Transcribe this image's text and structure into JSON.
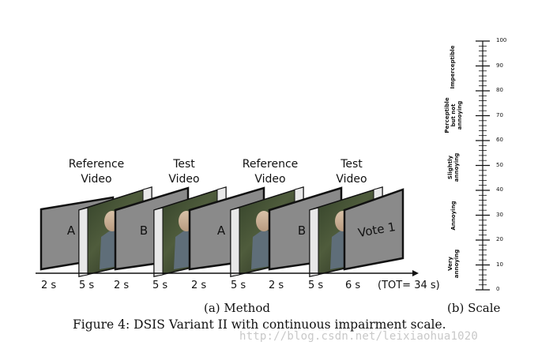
{
  "method": {
    "headers": [
      {
        "line1": "Reference",
        "line2": "Video"
      },
      {
        "line1": "Test",
        "line2": "Video"
      },
      {
        "line1": "Reference",
        "line2": "Video"
      },
      {
        "line1": "Test",
        "line2": "Video"
      }
    ],
    "frames": [
      {
        "kind": "gray",
        "letter": "A"
      },
      {
        "kind": "video"
      },
      {
        "kind": "gray",
        "letter": "B"
      },
      {
        "kind": "video"
      },
      {
        "kind": "gray",
        "letter": "A"
      },
      {
        "kind": "video"
      },
      {
        "kind": "gray",
        "letter": "B"
      },
      {
        "kind": "video"
      },
      {
        "kind": "gray",
        "letter": "Vote 1"
      }
    ],
    "durations": [
      "2 s",
      "5 s",
      "2 s",
      "5 s",
      "2 s",
      "5 s",
      "2 s",
      "5 s",
      "6 s"
    ],
    "total": "(TOT= 34 s)"
  },
  "scale": {
    "ticks": [
      "0",
      "10",
      "20",
      "30",
      "40",
      "50",
      "60",
      "70",
      "80",
      "90",
      "100"
    ],
    "categories": [
      {
        "lines": [
          "Very",
          "annoying"
        ]
      },
      {
        "lines": [
          "Annoying"
        ]
      },
      {
        "lines": [
          "Slightly",
          "annoying"
        ]
      },
      {
        "lines": [
          "Perceptible",
          "but not",
          "annoying"
        ]
      },
      {
        "lines": [
          "Imperceptible"
        ]
      }
    ]
  },
  "captions": {
    "method": "(a) Method",
    "scale": "(b) Scale",
    "figure": "Figure 4: DSIS Variant II with continuous impairment scale."
  },
  "watermark": "http://blog.csdn.net/leixiaohua1020"
}
